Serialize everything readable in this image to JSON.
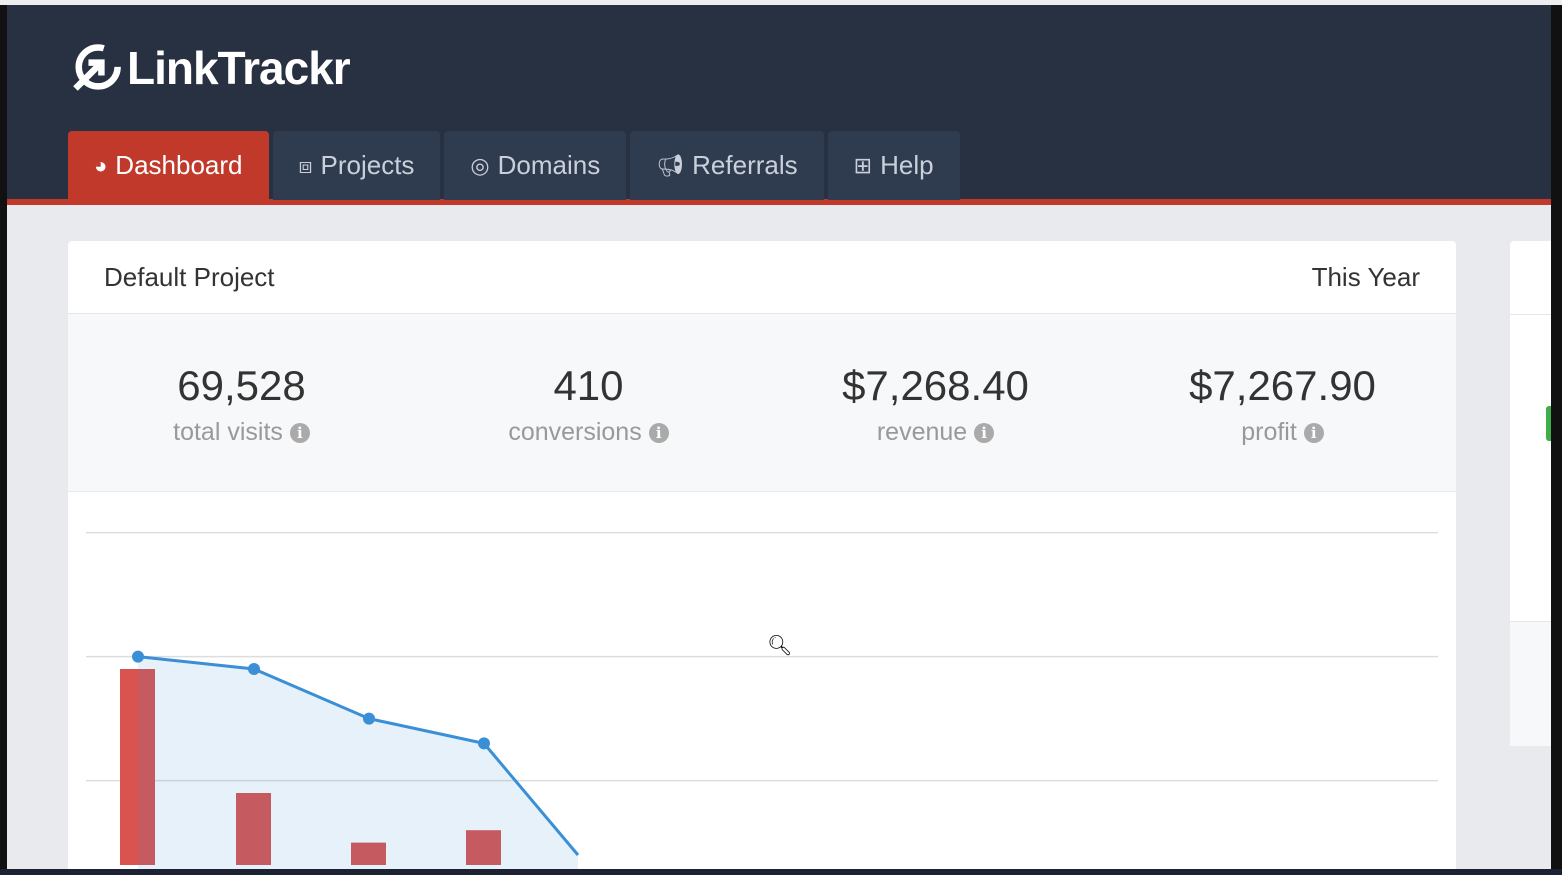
{
  "app": {
    "logo": "LinkTrackr"
  },
  "nav": [
    {
      "label": "Dashboard",
      "icon": "dashboard-gauge-icon",
      "active": true
    },
    {
      "label": "Projects",
      "icon": "cubes-icon"
    },
    {
      "label": "Domains",
      "icon": "compass-icon"
    },
    {
      "label": "Referrals",
      "icon": "bullhorn-icon"
    },
    {
      "label": "Help",
      "icon": "medkit-icon"
    }
  ],
  "card": {
    "title": "Default Project",
    "period": "This Year"
  },
  "stats": [
    {
      "value": "69,528",
      "label": "total visits"
    },
    {
      "value": "410",
      "label": "conversions"
    },
    {
      "value": "$7,268.40",
      "label": "revenue"
    },
    {
      "value": "$7,267.90",
      "label": "profit"
    }
  ],
  "colors": {
    "header": "#283142",
    "accent": "#c0392b",
    "line": "#3a8fd6",
    "bar": "#d9534f"
  },
  "chart_data": {
    "type": "bar+area-line",
    "grid": true,
    "line_series": {
      "values": [
        1.6,
        1.5,
        1.1,
        0.9,
        0.0
      ]
    },
    "bar_series": {
      "values": [
        1.5,
        0.5,
        0.1,
        0.2
      ]
    }
  }
}
